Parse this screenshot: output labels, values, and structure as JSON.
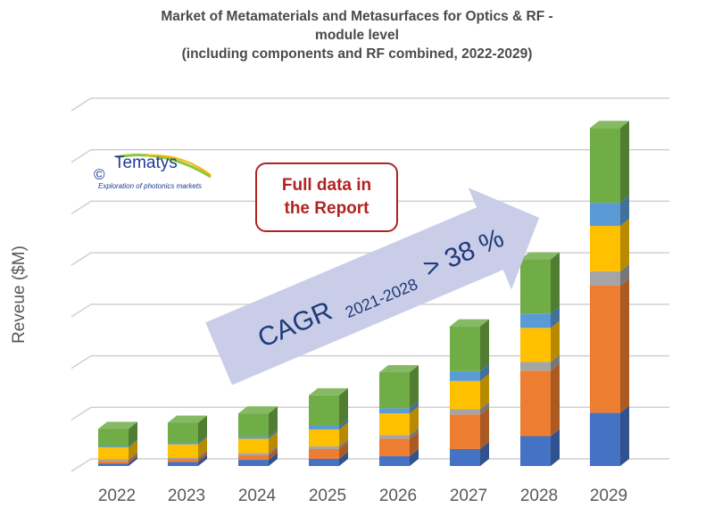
{
  "chart_data": {
    "type": "bar",
    "stacked": true,
    "title": "Market of Metamaterials and Metasurfaces for Optics & RF - module level",
    "subtitle": "(including components and RF combined, 2022-2029)",
    "title_lines": [
      "Market of Metamaterials and Metasurfaces for Optics & RF -",
      "module level",
      "(including components and RF combined, 2022-2029)"
    ],
    "ylabel": "Reveue ($M)",
    "xlabel": "",
    "categories": [
      "2022",
      "2023",
      "2024",
      "2025",
      "2026",
      "2027",
      "2028",
      "2029"
    ],
    "ylim": [
      0,
      7
    ],
    "grid": true,
    "series": [
      {
        "color": "#4472c4",
        "values": [
          0.05,
          0.08,
          0.12,
          0.14,
          0.19,
          0.33,
          0.58,
          1.03
        ]
      },
      {
        "color": "#ed7d31",
        "values": [
          0.05,
          0.06,
          0.09,
          0.19,
          0.34,
          0.67,
          1.27,
          2.47
        ]
      },
      {
        "color": "#a5a5a5",
        "values": [
          0.03,
          0.03,
          0.04,
          0.05,
          0.07,
          0.1,
          0.17,
          0.28
        ]
      },
      {
        "color": "#ffc000",
        "values": [
          0.23,
          0.25,
          0.28,
          0.33,
          0.42,
          0.55,
          0.66,
          0.88
        ]
      },
      {
        "color": "#5b9bd5",
        "values": [
          0.02,
          0.03,
          0.04,
          0.07,
          0.1,
          0.19,
          0.28,
          0.45
        ]
      },
      {
        "color": "#70ad47",
        "values": [
          0.34,
          0.39,
          0.45,
          0.59,
          0.7,
          0.87,
          1.05,
          1.45
        ]
      }
    ]
  },
  "logo": {
    "name": "Tematys",
    "copyright": "©",
    "tagline": "Exploration of photonics markets"
  },
  "callout": {
    "line1": "Full data in",
    "line2": "the Report"
  },
  "arrow": {
    "main": "CAGR",
    "sub": "2021-2028",
    "rest": "> 38 %",
    "color": "#c9cde8",
    "text_color": "#1f3a7a"
  }
}
